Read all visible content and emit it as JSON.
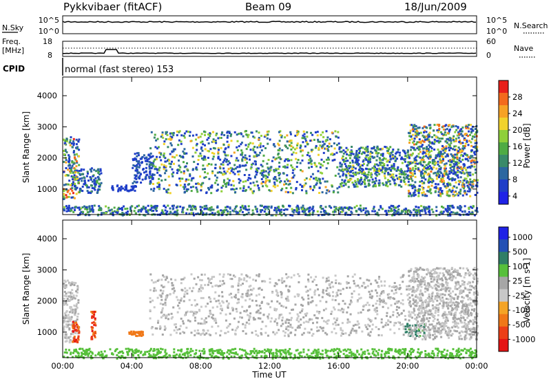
{
  "header": {
    "station": "Pykkvibaer (fitACF)",
    "beam": "Beam 09",
    "date": "18/Jun/2009"
  },
  "top_panels": {
    "nsky_label": "N.Sky",
    "nsky_ticks": [
      "10^5",
      "10^0"
    ],
    "nsearch_label": "N.Search",
    "nsearch_ticks": [
      "10^5",
      "10^0"
    ],
    "freq_label": "Freq.",
    "freq_unit": "[MHz]",
    "freq_ticks": [
      "18",
      "8"
    ],
    "nave_label": "Nave",
    "nave_ticks": [
      "60",
      "0"
    ],
    "cpid_label": "CPID",
    "cpid_value": "normal (fast stereo) 153"
  },
  "colors": {
    "power_scale": [
      "#1f22e6",
      "#1f3ec8",
      "#2c67a0",
      "#3a8a6a",
      "#4fab44",
      "#8fcf3a",
      "#f1d22c",
      "#f6a225",
      "#f36a1c",
      "#e8201a"
    ],
    "velocity_scale": [
      "#1f22e6",
      "#2350b4",
      "#2f7e66",
      "#57c03b",
      "#a6a6a6",
      "#c8c8c8",
      "#f4a426",
      "#f07818",
      "#ec3f17",
      "#e51414"
    ]
  },
  "chart_data": [
    {
      "type": "heatmap",
      "name": "power",
      "xlabel": "",
      "ylabel": "Slant Range [km]",
      "ylim": [
        180,
        4600
      ],
      "xlim": [
        "00:00",
        "24:00"
      ],
      "yticks": [
        "1000",
        "2000",
        "3000",
        "4000"
      ],
      "x_ticks": [
        "00:00",
        "04:00",
        "08:00",
        "12:00",
        "16:00",
        "20:00",
        "00:00"
      ],
      "colorbar": {
        "label": "Power [dB]",
        "range": [
          0,
          30
        ],
        "ticks": [
          "4",
          "8",
          "12",
          "16",
          "20",
          "24",
          "28"
        ]
      },
      "echo_regions": [
        {
          "from_h": 0.0,
          "to_h": 0.9,
          "range_km": [
            700,
            2700
          ],
          "power_db": [
            3,
            30
          ]
        },
        {
          "from_h": 0.9,
          "to_h": 2.2,
          "range_km": [
            900,
            1700
          ],
          "power_db": [
            3,
            14
          ]
        },
        {
          "from_h": 2.8,
          "to_h": 4.2,
          "range_km": [
            950,
            1150
          ],
          "power_db": [
            3,
            6
          ]
        },
        {
          "from_h": 4.0,
          "to_h": 5.2,
          "range_km": [
            1200,
            2200
          ],
          "power_db": [
            3,
            8
          ]
        },
        {
          "from_h": 5.0,
          "to_h": 16.0,
          "range_km": [
            900,
            2900
          ],
          "power_db": [
            3,
            22
          ]
        },
        {
          "from_h": 16.0,
          "to_h": 20.0,
          "range_km": [
            1100,
            2400
          ],
          "power_db": [
            3,
            20
          ]
        },
        {
          "from_h": 20.0,
          "to_h": 24.0,
          "range_km": [
            800,
            3100
          ],
          "power_db": [
            3,
            26
          ]
        },
        {
          "from_h": 0.0,
          "to_h": 24.0,
          "range_km": [
            180,
            500
          ],
          "power_db": [
            3,
            16
          ]
        }
      ]
    },
    {
      "type": "heatmap",
      "name": "velocity",
      "xlabel": "Time UT",
      "ylabel": "Slant Range [km]",
      "ylim": [
        180,
        4600
      ],
      "xlim": [
        "00:00",
        "24:00"
      ],
      "yticks": [
        "1000",
        "2000",
        "3000",
        "4000"
      ],
      "x_ticks": [
        "00:00",
        "04:00",
        "08:00",
        "12:00",
        "16:00",
        "20:00",
        "00:00"
      ],
      "colorbar": {
        "label": "Velocity [m s-1]",
        "ticks": [
          "1000",
          "500",
          "100",
          "25",
          "-25",
          "-100",
          "-500",
          "-1000"
        ]
      },
      "echo_regions": [
        {
          "from_h": 0.0,
          "to_h": 0.9,
          "range_km": [
            700,
            2700
          ],
          "velocity_ms": [
            -25,
            25
          ]
        },
        {
          "from_h": 0.5,
          "to_h": 0.9,
          "range_km": [
            700,
            1400
          ],
          "velocity_ms": [
            -1000,
            -100
          ]
        },
        {
          "from_h": 1.6,
          "to_h": 1.9,
          "range_km": [
            800,
            1700
          ],
          "velocity_ms": [
            -1000,
            -100
          ]
        },
        {
          "from_h": 3.8,
          "to_h": 4.6,
          "range_km": [
            900,
            1050
          ],
          "velocity_ms": [
            -500,
            -100
          ]
        },
        {
          "from_h": 5.0,
          "to_h": 20.0,
          "range_km": [
            900,
            2900
          ],
          "velocity_ms": [
            -25,
            25
          ]
        },
        {
          "from_h": 19.8,
          "to_h": 21.0,
          "range_km": [
            900,
            1300
          ],
          "velocity_ms": [
            25,
            500
          ]
        },
        {
          "from_h": 20.0,
          "to_h": 24.0,
          "range_km": [
            800,
            3100
          ],
          "velocity_ms": [
            -25,
            25
          ]
        },
        {
          "from_h": 0.0,
          "to_h": 24.0,
          "range_km": [
            180,
            500
          ],
          "velocity_ms": [
            25,
            100
          ]
        }
      ]
    }
  ]
}
